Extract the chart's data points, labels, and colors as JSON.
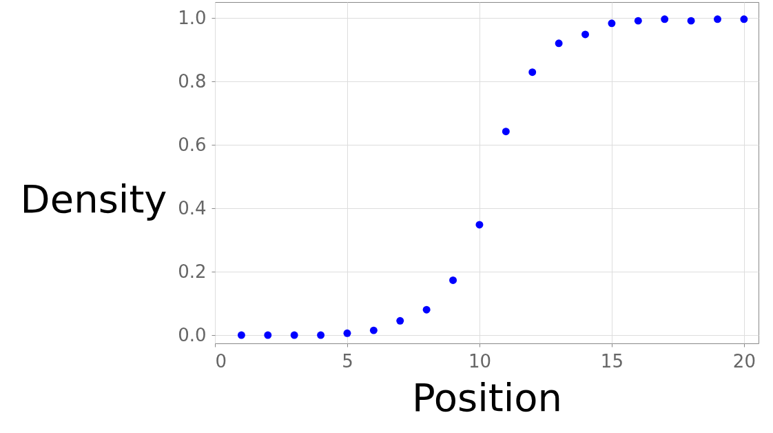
{
  "chart_data": {
    "type": "scatter",
    "xlabel": "Position",
    "ylabel": "Density",
    "x": [
      1,
      2,
      3,
      4,
      5,
      6,
      7,
      8,
      9,
      10,
      11,
      12,
      13,
      14,
      15,
      16,
      17,
      18,
      19,
      20
    ],
    "series": [
      {
        "color": "#0000ff",
        "values": [
          0.0,
          0.0,
          0.0,
          0.0,
          0.006,
          0.015,
          0.045,
          0.08,
          0.173,
          0.348,
          0.642,
          0.829,
          0.92,
          0.948,
          0.983,
          0.991,
          0.996,
          0.991,
          0.996,
          0.996
        ]
      }
    ],
    "xlim": [
      0,
      20.55
    ],
    "ylim": [
      -0.026,
      1.05
    ],
    "xticks": [
      0,
      5,
      10,
      15,
      20
    ],
    "yticks": [
      {
        "value": 0,
        "label": "0.0"
      },
      {
        "value": 0.2,
        "label": "0.2"
      },
      {
        "value": 0.4,
        "label": "0.4"
      },
      {
        "value": 0.6,
        "label": "0.6"
      },
      {
        "value": 0.8,
        "label": "0.8"
      },
      {
        "value": 1,
        "label": "1.0"
      }
    ],
    "grid": true,
    "marker": "circle"
  }
}
